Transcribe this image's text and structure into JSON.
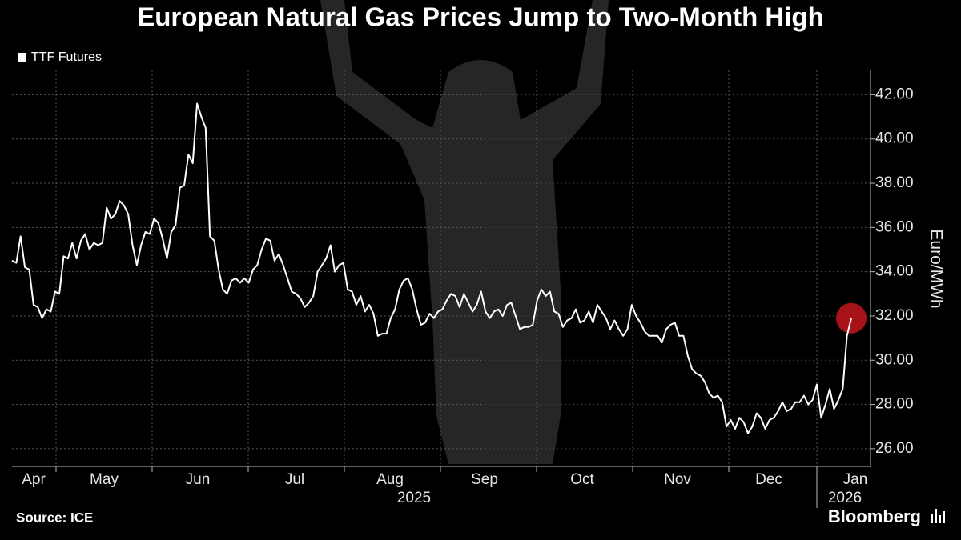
{
  "chart_data": {
    "type": "line",
    "title": "European Natural Gas Prices Jump to Two-Month High",
    "y_axis_label": "Euro/MWh",
    "source": "Source: ICE",
    "brand": "Bloomberg",
    "months": [
      "Apr",
      "May",
      "Jun",
      "Jul",
      "Aug",
      "Sep",
      "Oct",
      "Nov",
      "Dec",
      "Jan"
    ],
    "years": [
      "2025",
      "2026"
    ],
    "ylim": [
      25.2,
      43.1
    ],
    "yticks": [
      {
        "value": 26,
        "label": "26.00"
      },
      {
        "value": 28,
        "label": "28.00"
      },
      {
        "value": 30,
        "label": "30.00"
      },
      {
        "value": 32,
        "label": "32.00"
      },
      {
        "value": 34,
        "label": "34.00"
      },
      {
        "value": 36,
        "label": "36.00"
      },
      {
        "value": 38,
        "label": "38.00"
      },
      {
        "value": 40,
        "label": "40.00"
      },
      {
        "value": 42,
        "label": "42.00"
      }
    ],
    "grid": true,
    "highlight_last": true,
    "highlight_color": "#c4161c",
    "series": [
      {
        "name": "TTF Futures",
        "color": "#ffffff",
        "values": [
          34.5,
          34.4,
          35.6,
          34.2,
          34.1,
          32.5,
          32.4,
          31.9,
          32.3,
          32.2,
          33.1,
          33.0,
          34.7,
          34.6,
          35.3,
          34.6,
          35.4,
          35.7,
          35.0,
          35.3,
          35.2,
          35.3,
          36.9,
          36.4,
          36.6,
          37.2,
          37.0,
          36.6,
          35.2,
          34.3,
          35.2,
          35.8,
          35.7,
          36.4,
          36.2,
          35.5,
          34.6,
          35.8,
          36.1,
          37.8,
          37.9,
          39.3,
          38.9,
          41.6,
          41.0,
          40.5,
          35.6,
          35.4,
          34.1,
          33.2,
          33.0,
          33.6,
          33.7,
          33.5,
          33.7,
          33.5,
          34.1,
          34.3,
          35.0,
          35.5,
          35.4,
          34.5,
          34.8,
          34.3,
          33.7,
          33.1,
          33.0,
          32.8,
          32.4,
          32.6,
          32.9,
          34.0,
          34.3,
          34.6,
          35.2,
          34.0,
          34.3,
          34.4,
          33.2,
          33.1,
          32.5,
          32.9,
          32.2,
          32.5,
          32.1,
          31.1,
          31.2,
          31.2,
          31.9,
          32.3,
          33.2,
          33.6,
          33.7,
          33.2,
          32.3,
          31.6,
          31.7,
          32.1,
          31.9,
          32.2,
          32.3,
          32.7,
          33.0,
          32.9,
          32.4,
          33.0,
          32.6,
          32.2,
          32.5,
          33.1,
          32.2,
          31.9,
          32.2,
          32.3,
          32.0,
          32.5,
          32.6,
          32.0,
          31.4,
          31.5,
          31.5,
          31.6,
          32.7,
          33.2,
          32.9,
          33.1,
          32.2,
          32.1,
          31.5,
          31.8,
          31.9,
          32.3,
          31.7,
          31.8,
          32.2,
          31.7,
          32.5,
          32.2,
          31.9,
          31.4,
          31.8,
          31.4,
          31.1,
          31.4,
          32.5,
          32.0,
          31.7,
          31.3,
          31.1,
          31.1,
          31.1,
          30.8,
          31.4,
          31.6,
          31.7,
          31.1,
          31.1,
          30.2,
          29.6,
          29.4,
          29.3,
          29.0,
          28.5,
          28.3,
          28.4,
          28.1,
          27.0,
          27.3,
          26.9,
          27.4,
          27.2,
          26.7,
          27.0,
          27.6,
          27.4,
          26.9,
          27.3,
          27.4,
          27.7,
          28.1,
          27.7,
          27.8,
          28.1,
          28.1,
          28.4,
          28.0,
          28.2,
          28.9,
          27.4,
          28.0,
          28.7,
          27.8,
          28.2,
          28.7,
          31.1,
          31.9
        ]
      }
    ]
  }
}
